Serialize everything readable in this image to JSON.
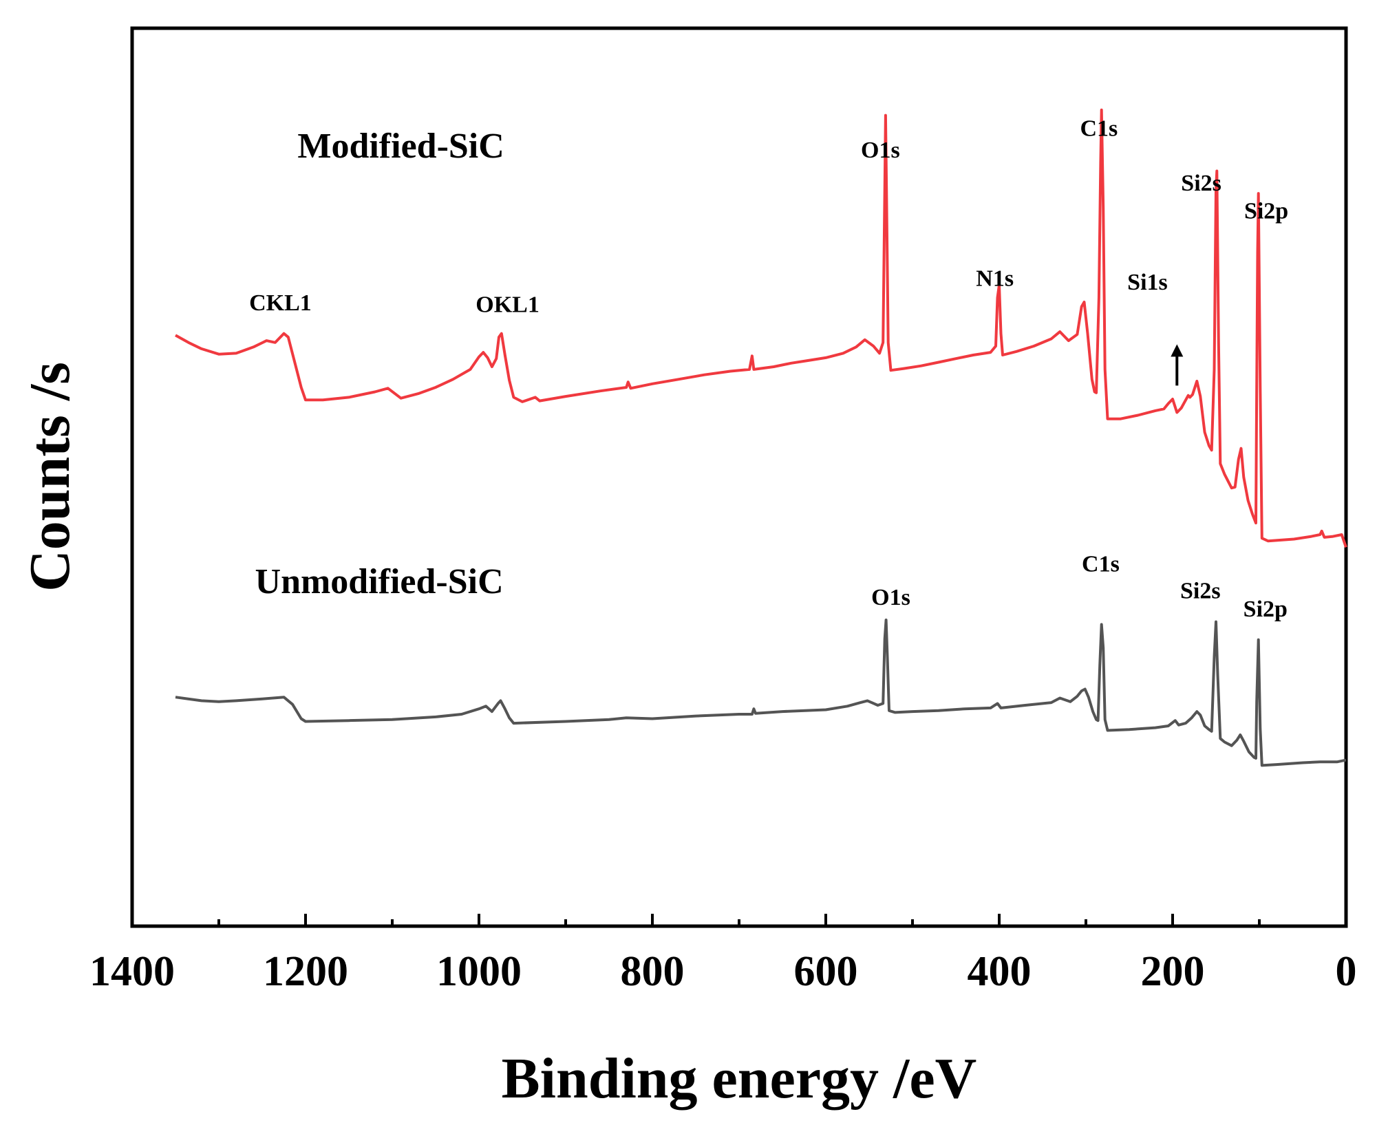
{
  "chart_data": {
    "type": "line",
    "title": "",
    "xlabel": "Binding energy /eV",
    "ylabel": "Counts /s",
    "xlim": [
      1400,
      0
    ],
    "ylim": [
      0,
      100
    ],
    "x_reversed": true,
    "x_ticks": [
      1400,
      1200,
      1000,
      800,
      600,
      400,
      200,
      0
    ],
    "x_tick_labels": [
      "1400",
      "1200",
      "1000",
      "800",
      "600",
      "400",
      "200",
      "0"
    ],
    "x_minor_ticks": [
      1300,
      1100,
      900,
      700,
      500,
      300,
      100
    ],
    "y_ticks_shown": false,
    "grid": false,
    "series": [
      {
        "name": "Modified-SiC",
        "color": "#f0393f",
        "points": [
          [
            1350,
            65.8
          ],
          [
            1335,
            65.0
          ],
          [
            1320,
            64.3
          ],
          [
            1300,
            63.7
          ],
          [
            1280,
            63.8
          ],
          [
            1260,
            64.5
          ],
          [
            1245,
            65.2
          ],
          [
            1235,
            65.0
          ],
          [
            1225,
            66.0
          ],
          [
            1220,
            65.6
          ],
          [
            1213,
            63.0
          ],
          [
            1205,
            60.0
          ],
          [
            1200,
            58.6
          ],
          [
            1180,
            58.6
          ],
          [
            1150,
            58.9
          ],
          [
            1120,
            59.5
          ],
          [
            1105,
            59.9
          ],
          [
            1090,
            58.8
          ],
          [
            1070,
            59.3
          ],
          [
            1050,
            60.0
          ],
          [
            1030,
            60.9
          ],
          [
            1010,
            62.0
          ],
          [
            1000,
            63.4
          ],
          [
            995,
            63.9
          ],
          [
            990,
            63.3
          ],
          [
            985,
            62.3
          ],
          [
            980,
            63.2
          ],
          [
            977,
            65.6
          ],
          [
            974,
            66.0
          ],
          [
            970,
            63.6
          ],
          [
            965,
            60.8
          ],
          [
            960,
            58.9
          ],
          [
            950,
            58.4
          ],
          [
            935,
            58.9
          ],
          [
            930,
            58.5
          ],
          [
            900,
            59.0
          ],
          [
            860,
            59.6
          ],
          [
            830,
            60.0
          ],
          [
            828,
            60.6
          ],
          [
            825,
            59.9
          ],
          [
            800,
            60.4
          ],
          [
            770,
            60.9
          ],
          [
            740,
            61.4
          ],
          [
            710,
            61.8
          ],
          [
            688,
            62.0
          ],
          [
            685,
            63.5
          ],
          [
            683,
            62.0
          ],
          [
            660,
            62.3
          ],
          [
            640,
            62.7
          ],
          [
            620,
            63.0
          ],
          [
            600,
            63.3
          ],
          [
            580,
            63.8
          ],
          [
            565,
            64.5
          ],
          [
            555,
            65.3
          ],
          [
            545,
            64.6
          ],
          [
            538,
            63.8
          ],
          [
            534,
            65.0
          ],
          [
            532,
            82.0
          ],
          [
            531,
            90.3
          ],
          [
            530,
            82.0
          ],
          [
            528,
            65.0
          ],
          [
            525,
            61.9
          ],
          [
            510,
            62.1
          ],
          [
            490,
            62.4
          ],
          [
            470,
            62.8
          ],
          [
            450,
            63.2
          ],
          [
            430,
            63.6
          ],
          [
            410,
            63.9
          ],
          [
            404,
            64.6
          ],
          [
            402,
            70.0
          ],
          [
            400,
            71.4
          ],
          [
            398,
            66.0
          ],
          [
            396,
            63.6
          ],
          [
            380,
            64.0
          ],
          [
            360,
            64.6
          ],
          [
            340,
            65.4
          ],
          [
            330,
            66.2
          ],
          [
            320,
            65.2
          ],
          [
            310,
            65.9
          ],
          [
            305,
            69.0
          ],
          [
            302,
            69.5
          ],
          [
            298,
            66.0
          ],
          [
            293,
            60.9
          ],
          [
            290,
            59.5
          ],
          [
            288,
            59.4
          ],
          [
            285,
            70.0
          ],
          [
            283,
            85.0
          ],
          [
            282,
            90.9
          ],
          [
            280,
            80.0
          ],
          [
            278,
            62.0
          ],
          [
            275,
            56.5
          ],
          [
            260,
            56.5
          ],
          [
            240,
            56.9
          ],
          [
            220,
            57.4
          ],
          [
            210,
            57.6
          ],
          [
            205,
            58.2
          ],
          [
            200,
            58.7
          ],
          [
            195,
            57.2
          ],
          [
            190,
            57.7
          ],
          [
            182,
            59.1
          ],
          [
            180,
            58.9
          ],
          [
            177,
            59.2
          ],
          [
            172,
            60.7
          ],
          [
            168,
            59.0
          ],
          [
            163,
            55.0
          ],
          [
            158,
            53.5
          ],
          [
            155,
            53.0
          ],
          [
            152,
            62.0
          ],
          [
            150,
            82.0
          ],
          [
            149,
            84.1
          ],
          [
            147,
            65.0
          ],
          [
            145,
            51.5
          ],
          [
            140,
            50.3
          ],
          [
            132,
            48.8
          ],
          [
            128,
            48.9
          ],
          [
            124,
            52.0
          ],
          [
            121,
            53.2
          ],
          [
            118,
            50.0
          ],
          [
            113,
            47.4
          ],
          [
            108,
            45.9
          ],
          [
            104,
            44.9
          ],
          [
            103,
            60.0
          ],
          [
            102,
            75.0
          ],
          [
            101,
            81.6
          ],
          [
            99,
            60.0
          ],
          [
            97,
            43.2
          ],
          [
            90,
            42.9
          ],
          [
            60,
            43.1
          ],
          [
            40,
            43.4
          ],
          [
            30,
            43.6
          ],
          [
            28,
            44.0
          ],
          [
            25,
            43.3
          ],
          [
            15,
            43.4
          ],
          [
            5,
            43.6
          ],
          [
            0,
            42.2
          ]
        ]
      },
      {
        "name": "Unmodified-SiC",
        "color": "#545454",
        "points": [
          [
            1350,
            25.5
          ],
          [
            1320,
            25.1
          ],
          [
            1300,
            25.0
          ],
          [
            1280,
            25.1
          ],
          [
            1250,
            25.3
          ],
          [
            1225,
            25.5
          ],
          [
            1215,
            24.7
          ],
          [
            1205,
            23.1
          ],
          [
            1200,
            22.8
          ],
          [
            1150,
            22.9
          ],
          [
            1100,
            23.0
          ],
          [
            1050,
            23.3
          ],
          [
            1020,
            23.6
          ],
          [
            1000,
            24.2
          ],
          [
            992,
            24.5
          ],
          [
            985,
            23.9
          ],
          [
            978,
            24.8
          ],
          [
            975,
            25.1
          ],
          [
            970,
            24.2
          ],
          [
            965,
            23.2
          ],
          [
            960,
            22.6
          ],
          [
            900,
            22.8
          ],
          [
            850,
            23.0
          ],
          [
            830,
            23.2
          ],
          [
            800,
            23.1
          ],
          [
            750,
            23.4
          ],
          [
            700,
            23.6
          ],
          [
            685,
            23.6
          ],
          [
            683,
            24.2
          ],
          [
            681,
            23.7
          ],
          [
            650,
            23.9
          ],
          [
            600,
            24.1
          ],
          [
            575,
            24.5
          ],
          [
            560,
            24.9
          ],
          [
            552,
            25.1
          ],
          [
            540,
            24.6
          ],
          [
            534,
            24.8
          ],
          [
            532,
            32.0
          ],
          [
            530.5,
            34.1
          ],
          [
            529,
            30.0
          ],
          [
            527,
            24.0
          ],
          [
            520,
            23.8
          ],
          [
            500,
            23.9
          ],
          [
            470,
            24.0
          ],
          [
            440,
            24.2
          ],
          [
            410,
            24.3
          ],
          [
            402,
            24.8
          ],
          [
            398,
            24.3
          ],
          [
            370,
            24.6
          ],
          [
            340,
            24.9
          ],
          [
            330,
            25.4
          ],
          [
            318,
            25.0
          ],
          [
            310,
            25.6
          ],
          [
            305,
            26.2
          ],
          [
            301,
            26.4
          ],
          [
            297,
            25.5
          ],
          [
            292,
            23.9
          ],
          [
            288,
            23.0
          ],
          [
            286,
            22.9
          ],
          [
            284,
            29.0
          ],
          [
            282,
            33.6
          ],
          [
            280,
            31.0
          ],
          [
            278,
            23.0
          ],
          [
            275,
            21.8
          ],
          [
            250,
            21.9
          ],
          [
            220,
            22.1
          ],
          [
            205,
            22.3
          ],
          [
            197,
            22.9
          ],
          [
            193,
            22.4
          ],
          [
            185,
            22.6
          ],
          [
            178,
            23.2
          ],
          [
            172,
            23.9
          ],
          [
            168,
            23.5
          ],
          [
            163,
            22.3
          ],
          [
            158,
            21.9
          ],
          [
            155,
            21.7
          ],
          [
            152,
            30.0
          ],
          [
            150,
            33.9
          ],
          [
            148,
            28.0
          ],
          [
            145,
            20.9
          ],
          [
            140,
            20.5
          ],
          [
            132,
            20.1
          ],
          [
            126,
            20.7
          ],
          [
            122,
            21.3
          ],
          [
            118,
            20.6
          ],
          [
            112,
            19.4
          ],
          [
            106,
            18.8
          ],
          [
            104,
            18.7
          ],
          [
            103,
            25.0
          ],
          [
            101,
            31.9
          ],
          [
            99,
            22.0
          ],
          [
            97,
            17.9
          ],
          [
            80,
            18.0
          ],
          [
            50,
            18.2
          ],
          [
            30,
            18.3
          ],
          [
            10,
            18.3
          ],
          [
            0,
            18.5
          ]
        ]
      }
    ],
    "annotations": {
      "series_labels": [
        {
          "text": "Modified-SiC",
          "x": 1090,
          "y": 85.6
        },
        {
          "text": "Unmodified-SiC",
          "x": 1115,
          "y": 37.1
        }
      ],
      "peak_labels": [
        {
          "text": "CKL1",
          "x": 1229,
          "y": 68.6
        },
        {
          "text": "OKL1",
          "x": 967,
          "y": 68.4
        },
        {
          "text": "O1s",
          "x": 537,
          "y": 85.6
        },
        {
          "text": "N1s",
          "x": 405,
          "y": 71.3
        },
        {
          "text": "C1s",
          "x": 285,
          "y": 88.0
        },
        {
          "text": "Si1s",
          "x": 229,
          "y": 70.9
        },
        {
          "text": "Si2s",
          "x": 167,
          "y": 81.9
        },
        {
          "text": "Si2p",
          "x": 92,
          "y": 78.8
        },
        {
          "text": "O1s",
          "x": 525,
          "y": 35.8
        },
        {
          "text": "C1s",
          "x": 283,
          "y": 39.5
        },
        {
          "text": "Si2s",
          "x": 168,
          "y": 36.5
        },
        {
          "text": "Si2p",
          "x": 93,
          "y": 34.5
        }
      ],
      "arrow": {
        "x": 195,
        "y_from": 60.2,
        "y_to": 64.8
      }
    }
  }
}
